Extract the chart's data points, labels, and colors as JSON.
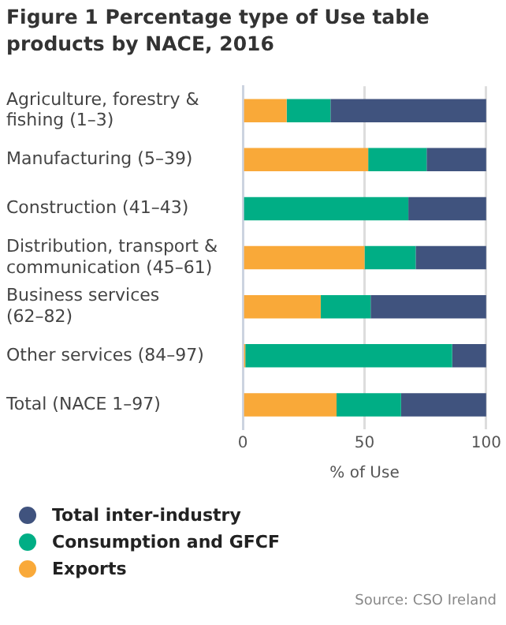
{
  "chart_data": {
    "type": "bar",
    "orientation": "horizontal",
    "stacked": true,
    "title": "Figure 1 Percentage type of Use table products by NACE, 2016",
    "xlabel": "% of Use",
    "categories": [
      "Agriculture, forestry & fishing (1–3)",
      "Manufacturing (5–39)",
      "Construction (41–43)",
      "Distribution, transport & communication (45–61)",
      "Business services (62–82)",
      "Other services (84–97)",
      "Total (NACE 1–97)"
    ],
    "series": [
      {
        "name": "Exports",
        "color": "#f9a939",
        "values": [
          18,
          51.5,
          0,
          50,
          32,
          1,
          38.5
        ]
      },
      {
        "name": "Consumption and GFCF",
        "color": "#00ae85",
        "values": [
          18,
          24,
          68,
          21,
          20.5,
          85,
          26.5
        ]
      },
      {
        "name": "Total inter-industry",
        "color": "#40537e",
        "values": [
          64,
          24.5,
          32,
          29,
          47.5,
          14,
          35
        ]
      }
    ],
    "xlim": [
      0,
      100
    ],
    "xticks": [
      0,
      50,
      100
    ],
    "grid": "x",
    "legend": "bottom",
    "annotations": [
      "Source: CSO Ireland"
    ]
  }
}
